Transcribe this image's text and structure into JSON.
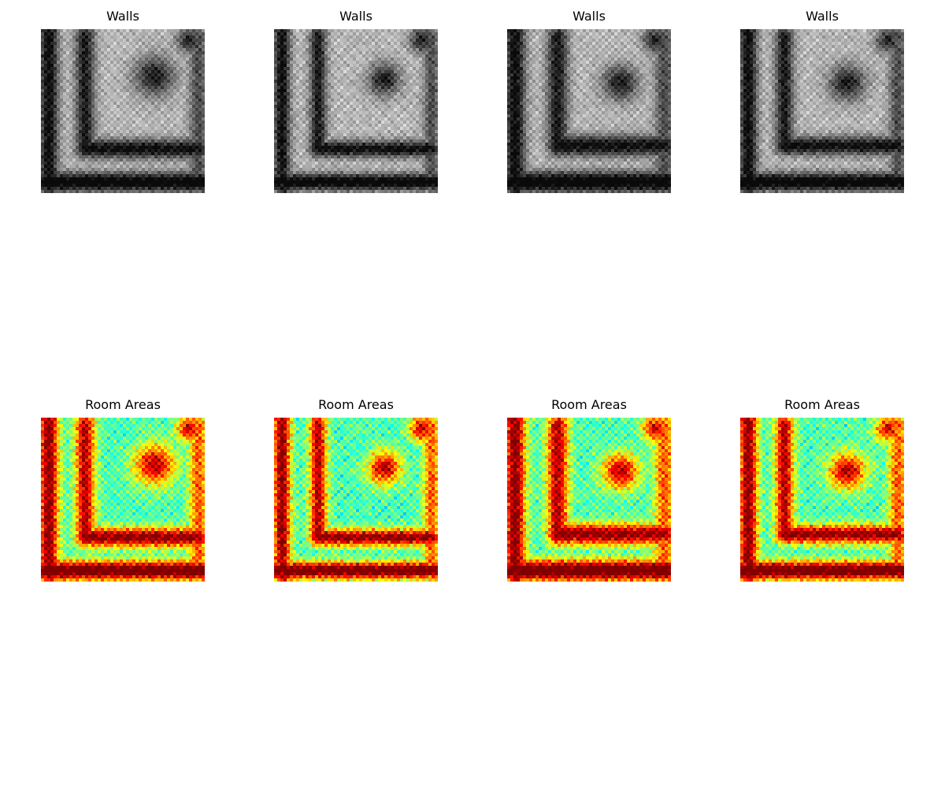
{
  "rows": [
    {
      "title": "Walls",
      "colormap": "gray-inverted",
      "panel_count": 4
    },
    {
      "title": "Room Areas",
      "colormap": "jet",
      "panel_count": 4
    }
  ],
  "colors": {
    "background": "#ffffff",
    "wall": "#000000",
    "floor": "#d9d9d9",
    "jet_low": "#00007f",
    "jet_mid": "#7fff7f",
    "jet_high": "#7f0000"
  }
}
